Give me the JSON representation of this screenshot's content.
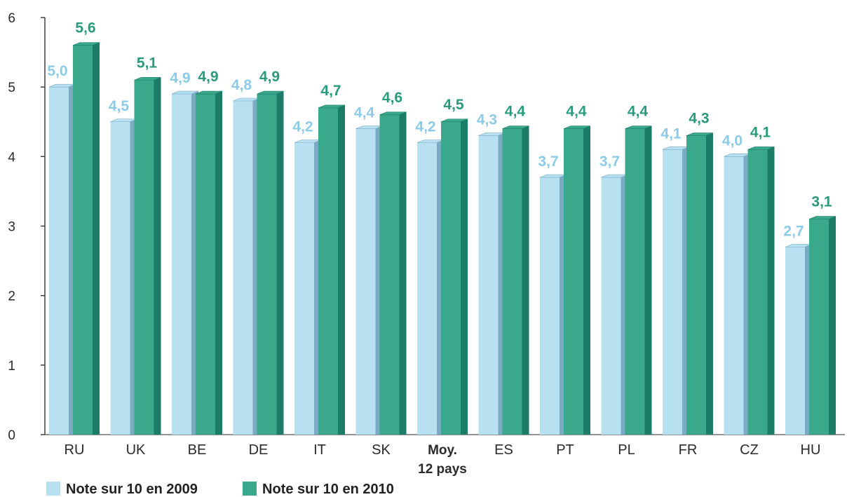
{
  "chart_data": {
    "type": "bar",
    "categories": [
      "RU",
      "UK",
      "BE",
      "DE",
      "IT",
      "SK",
      "Moy.|12 pays",
      "ES",
      "PT",
      "PL",
      "FR",
      "CZ",
      "HU"
    ],
    "highlight_category_index": 6,
    "series": [
      {
        "name": "Note sur 10 en 2009",
        "values": [
          5.0,
          4.5,
          4.9,
          4.8,
          4.2,
          4.4,
          4.2,
          4.3,
          3.7,
          3.7,
          4.1,
          4.0,
          2.7
        ],
        "labels": [
          "5,0",
          "4,5",
          "4,9",
          "4,8",
          "4,2",
          "4,4",
          "4,2",
          "4,3",
          "3,7",
          "3,7",
          "4,1",
          "4,0",
          "2,7"
        ],
        "color": "#b7e0f1",
        "side_color": "#7aaac4",
        "label_color": "#8ccbe8"
      },
      {
        "name": "Note sur 10 en 2010",
        "values": [
          5.6,
          5.1,
          4.9,
          4.9,
          4.7,
          4.6,
          4.5,
          4.4,
          4.4,
          4.4,
          4.3,
          4.1,
          3.1
        ],
        "labels": [
          "5,6",
          "5,1",
          "4,9",
          "4,9",
          "4,7",
          "4,6",
          "4,5",
          "4,4",
          "4,4",
          "4,4",
          "4,3",
          "4,1",
          "3,1"
        ],
        "color": "#3aa88a",
        "side_color": "#1b7c68",
        "label_color": "#2a9a7c"
      }
    ],
    "yticks": [
      "0",
      "1",
      "2",
      "3",
      "4",
      "5",
      "6"
    ],
    "ylim": [
      0,
      6
    ],
    "legend_position": "bottom-left",
    "grid": false
  }
}
